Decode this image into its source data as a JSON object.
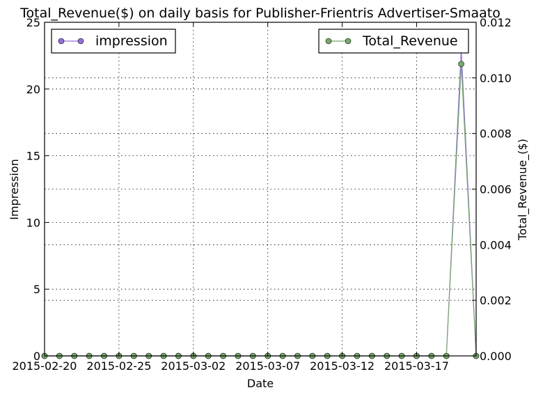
{
  "chart_data": {
    "type": "line",
    "title": "Total_Revenue($) on daily basis for Publisher-Frientris Advertiser-Smaato",
    "xlabel": "Date",
    "ylabel_left": "Impression",
    "ylabel_right": "Total_Revenue_($)",
    "x": [
      "2015-02-20",
      "2015-02-21",
      "2015-02-22",
      "2015-02-23",
      "2015-02-24",
      "2015-02-25",
      "2015-02-26",
      "2015-02-27",
      "2015-02-28",
      "2015-03-01",
      "2015-03-02",
      "2015-03-03",
      "2015-03-04",
      "2015-03-05",
      "2015-03-06",
      "2015-03-07",
      "2015-03-08",
      "2015-03-09",
      "2015-03-10",
      "2015-03-11",
      "2015-03-12",
      "2015-03-13",
      "2015-03-14",
      "2015-03-15",
      "2015-03-16",
      "2015-03-17",
      "2015-03-18",
      "2015-03-19",
      "2015-03-20",
      "2015-03-21"
    ],
    "x_tick_labels": [
      "2015-02-20",
      "2015-02-25",
      "2015-03-02",
      "2015-03-07",
      "2015-03-12",
      "2015-03-17"
    ],
    "ylim_left": [
      0,
      25
    ],
    "yticks_left": [
      "0",
      "5",
      "10",
      "15",
      "20",
      "25"
    ],
    "ylim_right": [
      0,
      0.012
    ],
    "yticks_right": [
      "0.000",
      "0.002",
      "0.004",
      "0.006",
      "0.008",
      "0.010",
      "0.012"
    ],
    "grid": true,
    "series": [
      {
        "name": "impression",
        "axis": "left",
        "color": "#9370DB",
        "values": [
          0,
          0,
          0,
          0,
          0,
          0,
          0,
          0,
          0,
          0,
          0,
          0,
          0,
          0,
          0,
          0,
          0,
          0,
          0,
          0,
          0,
          0,
          0,
          0,
          0,
          0,
          0,
          0,
          23,
          0
        ]
      },
      {
        "name": "Total_Revenue",
        "axis": "right",
        "color": "#77A96B",
        "values": [
          0,
          0,
          0,
          0,
          0,
          0,
          0,
          0,
          0,
          0,
          0,
          0,
          0,
          0,
          0,
          0,
          0,
          0,
          0,
          0,
          0,
          0,
          0,
          0,
          0,
          0,
          0,
          0,
          0.0105,
          0
        ]
      }
    ],
    "legends": [
      {
        "series": "impression",
        "position": "top-left"
      },
      {
        "series": "Total_Revenue",
        "position": "top-right"
      }
    ]
  }
}
